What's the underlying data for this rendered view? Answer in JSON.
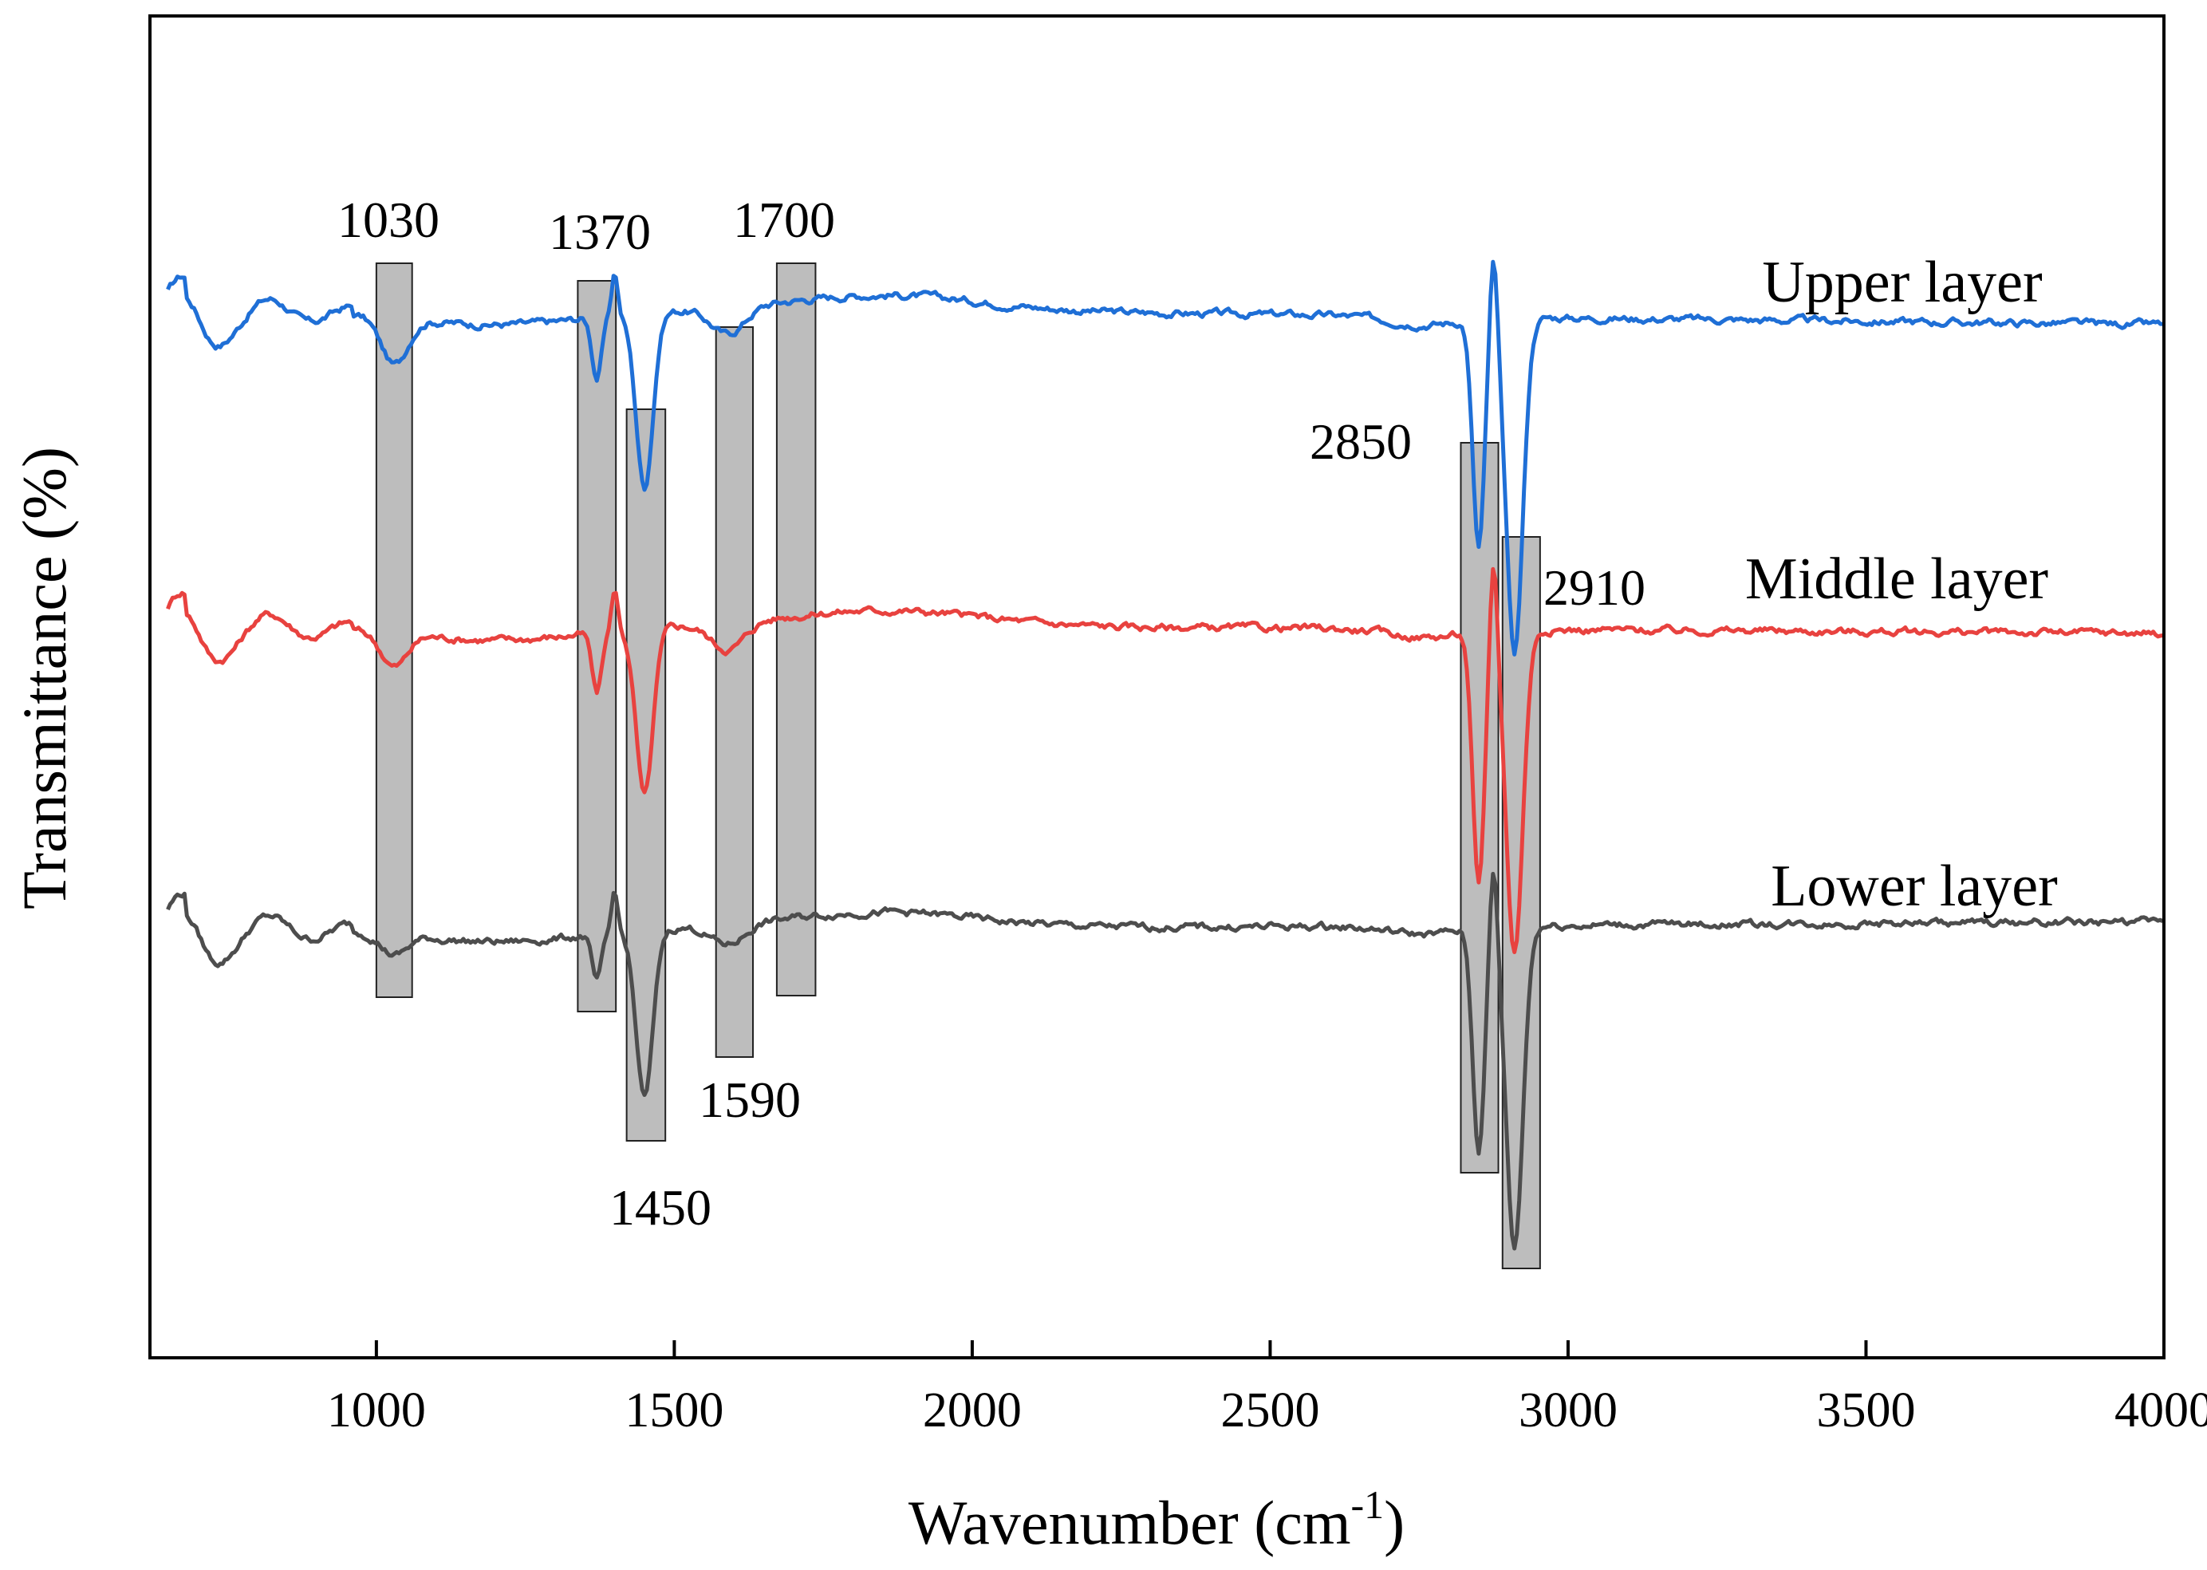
{
  "chart_data": {
    "type": "line",
    "title": "",
    "xlabel": "Wavenumber (cm",
    "xlabel_sup": "-1",
    "xlabel_close": ")",
    "ylabel": "Transmittance (%)",
    "xlim": [
      620,
      4000
    ],
    "ylim": [
      0,
      1
    ],
    "xticks": [
      1000,
      1500,
      2000,
      2500,
      3000,
      3500,
      4000
    ],
    "yticks_visible": false,
    "band_annotations": [
      {
        "label": "1030",
        "center": 1030,
        "label_pos": "top"
      },
      {
        "label": "1370",
        "center": 1370,
        "label_pos": "top"
      },
      {
        "label": "1450",
        "center": 1450,
        "label_pos": "bottom"
      },
      {
        "label": "1590",
        "center": 1590,
        "label_pos": "bottom"
      },
      {
        "label": "1700",
        "center": 1700,
        "label_pos": "top"
      },
      {
        "label": "2850",
        "center": 2850,
        "label_pos": "left"
      },
      {
        "label": "2910",
        "center": 2910,
        "label_pos": "right"
      }
    ],
    "series": [
      {
        "name": "Upper layer",
        "color": "#1f6fd6",
        "baseline": 0.78,
        "end_value": 0.77,
        "peaks": [
          {
            "x": 1030,
            "depth": 0.035
          },
          {
            "x": 1370,
            "depth": 0.045
          },
          {
            "x": 1450,
            "depth": 0.13
          },
          {
            "x": 1590,
            "depth": 0.02
          },
          {
            "x": 2850,
            "depth": 0.17
          },
          {
            "x": 2910,
            "depth": 0.25
          }
        ]
      },
      {
        "name": "Middle layer",
        "color": "#e8423f",
        "baseline": 0.545,
        "end_value": 0.54,
        "peaks": [
          {
            "x": 1030,
            "depth": 0.025
          },
          {
            "x": 1370,
            "depth": 0.045
          },
          {
            "x": 1450,
            "depth": 0.125
          },
          {
            "x": 1590,
            "depth": 0.02
          },
          {
            "x": 2850,
            "depth": 0.19
          },
          {
            "x": 2910,
            "depth": 0.24
          }
        ]
      },
      {
        "name": "Lower layer",
        "color": "#4d4d4d",
        "baseline": 0.32,
        "end_value": 0.325,
        "peaks": [
          {
            "x": 1030,
            "depth": 0.015
          },
          {
            "x": 1370,
            "depth": 0.035
          },
          {
            "x": 1450,
            "depth": 0.125
          },
          {
            "x": 1590,
            "depth": 0.015
          },
          {
            "x": 2850,
            "depth": 0.165
          },
          {
            "x": 2910,
            "depth": 0.24
          }
        ]
      }
    ]
  }
}
